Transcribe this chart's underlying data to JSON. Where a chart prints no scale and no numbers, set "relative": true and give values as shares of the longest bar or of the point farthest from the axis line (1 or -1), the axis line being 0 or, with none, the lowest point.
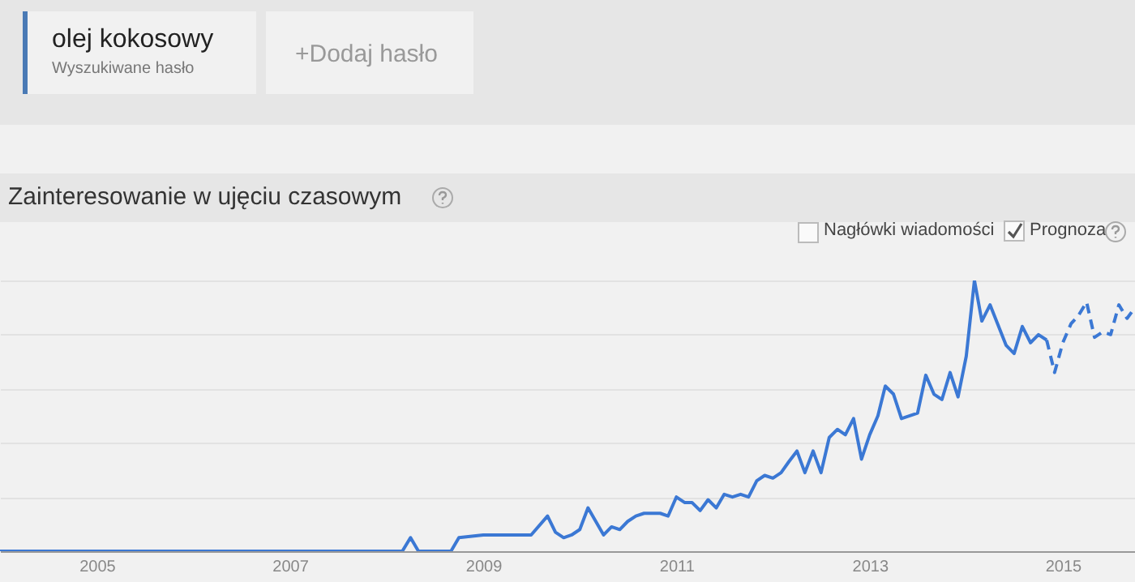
{
  "chart_data": {
    "type": "line",
    "title": "Zainteresowanie w ujęciu czasowym",
    "annotations": [
      "olej kokosowy",
      "Wyszukiwane hasło",
      "+Dodaj hasło",
      "Nagłówki wiadomości",
      "Prognoza"
    ],
    "relative": true,
    "grid": "y",
    "xlim": [
      "2004-01",
      "2015-10"
    ],
    "xticks": [
      "2005",
      "2007",
      "2009",
      "2011",
      "2013",
      "2015"
    ],
    "series": [
      {
        "color": "#3b78d4",
        "line_style": "solid",
        "x": [
          "2004-01",
          "2008-03",
          "2008-04",
          "2008-05",
          "2008-09",
          "2008-10",
          "2009-01",
          "2009-07",
          "2009-09",
          "2009-10",
          "2009-11",
          "2009-12",
          "2010-01",
          "2010-02",
          "2010-04",
          "2010-05",
          "2010-06",
          "2010-07",
          "2010-08",
          "2010-09",
          "2010-11",
          "2010-12",
          "2011-01",
          "2011-02",
          "2011-03",
          "2011-04",
          "2011-05",
          "2011-06",
          "2011-07",
          "2011-08",
          "2011-09",
          "2011-10",
          "2011-11",
          "2011-12",
          "2012-01",
          "2012-02",
          "2012-03",
          "2012-04",
          "2012-05",
          "2012-06",
          "2012-07",
          "2012-08",
          "2012-09",
          "2012-10",
          "2012-11",
          "2012-12",
          "2013-01",
          "2013-02",
          "2013-03",
          "2013-04",
          "2013-05",
          "2013-07",
          "2013-08",
          "2013-09",
          "2013-10",
          "2013-11",
          "2013-12",
          "2014-01",
          "2014-02",
          "2014-03",
          "2014-04",
          "2014-06",
          "2014-07",
          "2014-08",
          "2014-09",
          "2014-10",
          "2014-11"
        ],
        "values": [
          0,
          0,
          0.05,
          0,
          0,
          0.05,
          0.06,
          0.06,
          0.13,
          0.07,
          0.05,
          0.06,
          0.08,
          0.16,
          0.06,
          0.09,
          0.08,
          0.11,
          0.13,
          0.14,
          0.14,
          0.13,
          0.2,
          0.18,
          0.18,
          0.15,
          0.19,
          0.16,
          0.21,
          0.2,
          0.21,
          0.2,
          0.26,
          0.28,
          0.27,
          0.29,
          0.33,
          0.37,
          0.29,
          0.37,
          0.29,
          0.42,
          0.45,
          0.43,
          0.49,
          0.34,
          0.43,
          0.5,
          0.61,
          0.58,
          0.49,
          0.51,
          0.65,
          0.58,
          0.56,
          0.66,
          0.57,
          0.72,
          1,
          0.85,
          0.91,
          0.76,
          0.73,
          0.83,
          0.77,
          0.8,
          0.78
        ]
      },
      {
        "color": "#3b78d4",
        "line_style": "dashed",
        "x": [
          "2014-11",
          "2014-12",
          "2015-01",
          "2015-02",
          "2015-03",
          "2015-04",
          "2015-05",
          "2015-06",
          "2015-07",
          "2015-08",
          "2015-09",
          "2015-10"
        ],
        "values": [
          0.78,
          0.66,
          0.77,
          0.84,
          0.87,
          0.92,
          0.79,
          0.81,
          0.8,
          0.91,
          0.86,
          0.9
        ]
      }
    ]
  }
}
